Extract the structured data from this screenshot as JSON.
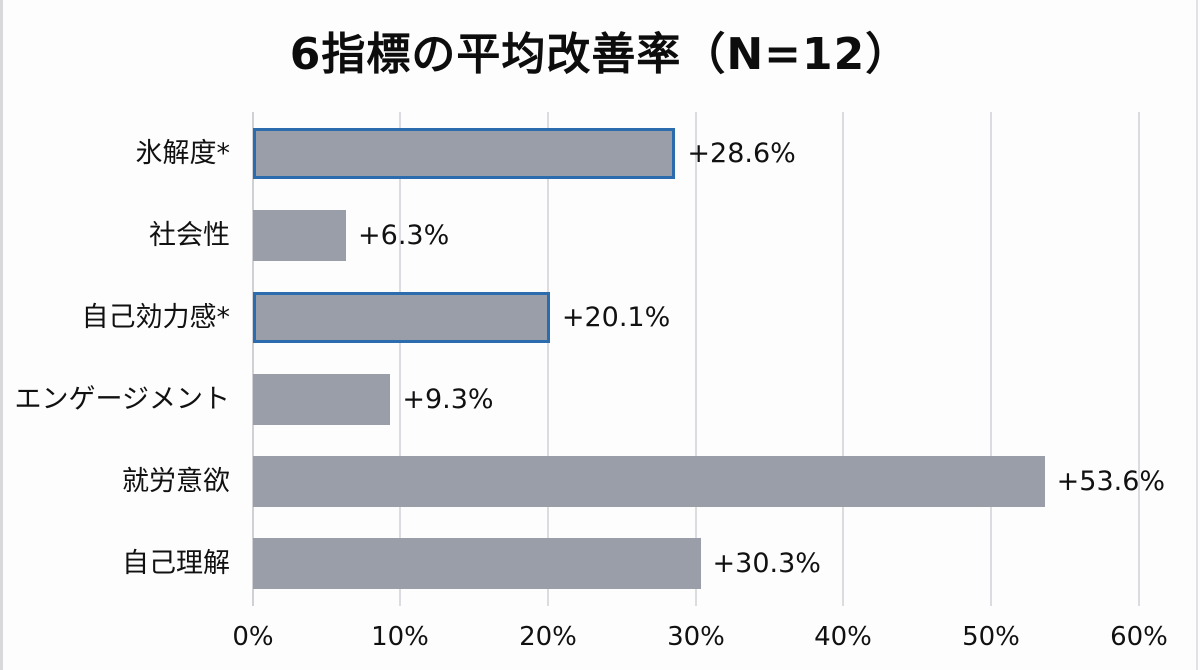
{
  "title": "6指標の平均改善率（N=12）",
  "colors": {
    "bar_fill": "#9a9ea8",
    "highlight_border": "#2a6cad",
    "gridline": "#dcdce0",
    "background": "#fdfdfe",
    "text": "#111111"
  },
  "categories": [
    {
      "label": "氷解度*",
      "value": 28.6,
      "value_label": "+28.6%",
      "highlight": true
    },
    {
      "label": "社会性",
      "value": 6.3,
      "value_label": "+6.3%",
      "highlight": false
    },
    {
      "label": "自己効力感*",
      "value": 20.1,
      "value_label": "+20.1%",
      "highlight": true
    },
    {
      "label": "エンゲージメント",
      "value": 9.3,
      "value_label": "+9.3%",
      "highlight": false
    },
    {
      "label": "就労意欲",
      "value": 53.6,
      "value_label": "+53.6%",
      "highlight": false
    },
    {
      "label": "自己理解",
      "value": 30.3,
      "value_label": "+30.3%",
      "highlight": false
    }
  ],
  "x_axis": {
    "ticks": [
      "0%",
      "10%",
      "20%",
      "30%",
      "40%",
      "50%",
      "60%"
    ]
  },
  "chart_data": {
    "type": "bar",
    "orientation": "horizontal",
    "title": "6指標の平均改善率（N=12）",
    "categories": [
      "氷解度*",
      "社会性",
      "自己効力感*",
      "エンゲージメント",
      "就労意欲",
      "自己理解"
    ],
    "values": [
      28.6,
      6.3,
      20.1,
      9.3,
      53.6,
      30.3
    ],
    "data_labels": [
      "+28.6%",
      "+6.3%",
      "+20.1%",
      "+9.3%",
      "+53.6%",
      "+30.3%"
    ],
    "highlighted": [
      "氷解度*",
      "自己効力感*"
    ],
    "xlabel": "",
    "ylabel": "",
    "xlim": [
      0,
      60
    ],
    "x_ticks": [
      "0%",
      "10%",
      "20%",
      "30%",
      "40%",
      "50%",
      "60%"
    ],
    "grid": "vertical",
    "legend": "none"
  }
}
